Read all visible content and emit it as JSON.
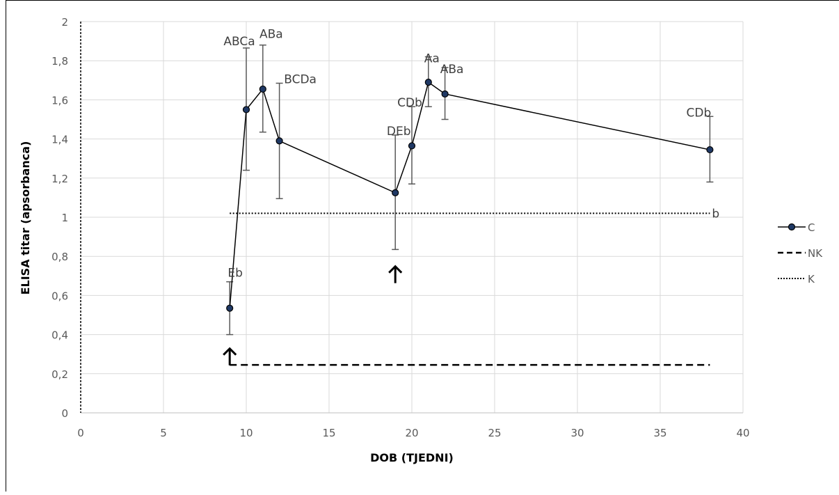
{
  "chart_data": {
    "type": "line",
    "title": "",
    "xlabel": "DOB (TJEDNI)",
    "ylabel": "ELISA titar (apsorbanca)",
    "xlim": [
      0,
      40
    ],
    "ylim": [
      0,
      2
    ],
    "x_ticks": [
      "0",
      "5",
      "10",
      "15",
      "20",
      "25",
      "30",
      "35",
      "40"
    ],
    "y_ticks": [
      "0",
      "0,2",
      "0,4",
      "0,6",
      "0,8",
      "1",
      "1,2",
      "1,4",
      "1,6",
      "1,8",
      "2"
    ],
    "grid": true,
    "legend_position": "right",
    "series": [
      {
        "name": "C",
        "style": "solid-markers",
        "points": [
          {
            "x": 9,
            "y": 0.535,
            "err_low": 0.4,
            "err_high": 0.67,
            "label": "Eb"
          },
          {
            "x": 10,
            "y": 1.55,
            "err_low": 1.24,
            "err_high": 1.865,
            "label": "ABCa"
          },
          {
            "x": 11,
            "y": 1.655,
            "err_low": 1.435,
            "err_high": 1.88,
            "label": "ABa"
          },
          {
            "x": 12,
            "y": 1.39,
            "err_low": 1.095,
            "err_high": 1.685,
            "label": "BCDa"
          },
          {
            "x": 19,
            "y": 1.125,
            "err_low": 0.835,
            "err_high": 1.42,
            "label": "DEb"
          },
          {
            "x": 20,
            "y": 1.365,
            "err_low": 1.17,
            "err_high": 1.565,
            "label": "CDb"
          },
          {
            "x": 21,
            "y": 1.69,
            "err_low": 1.565,
            "err_high": 1.82,
            "label": "Aa"
          },
          {
            "x": 22,
            "y": 1.63,
            "err_low": 1.5,
            "err_high": 1.765,
            "label": "ABa"
          },
          {
            "x": 38,
            "y": 1.345,
            "err_low": 1.18,
            "err_high": 1.515,
            "label": "CDb"
          }
        ]
      },
      {
        "name": "NK",
        "style": "dashed",
        "points": [
          {
            "x": 9,
            "y": 0.245
          },
          {
            "x": 38,
            "y": 0.245
          }
        ]
      },
      {
        "name": "K",
        "style": "dotted",
        "points": [
          {
            "x": 9,
            "y": 1.02
          },
          {
            "x": 38,
            "y": 1.02
          }
        ],
        "end_label": "b"
      }
    ],
    "annotations": [
      {
        "type": "arrow-up",
        "x": 9,
        "y": 0.3
      },
      {
        "type": "arrow-up",
        "x": 19,
        "y": 0.72
      }
    ],
    "colors": {
      "line": "#000000",
      "marker_fill": "#1f3864",
      "error_bar": "#595959",
      "grid": "#d9d9d9",
      "axis": "#bfbfbf"
    }
  }
}
